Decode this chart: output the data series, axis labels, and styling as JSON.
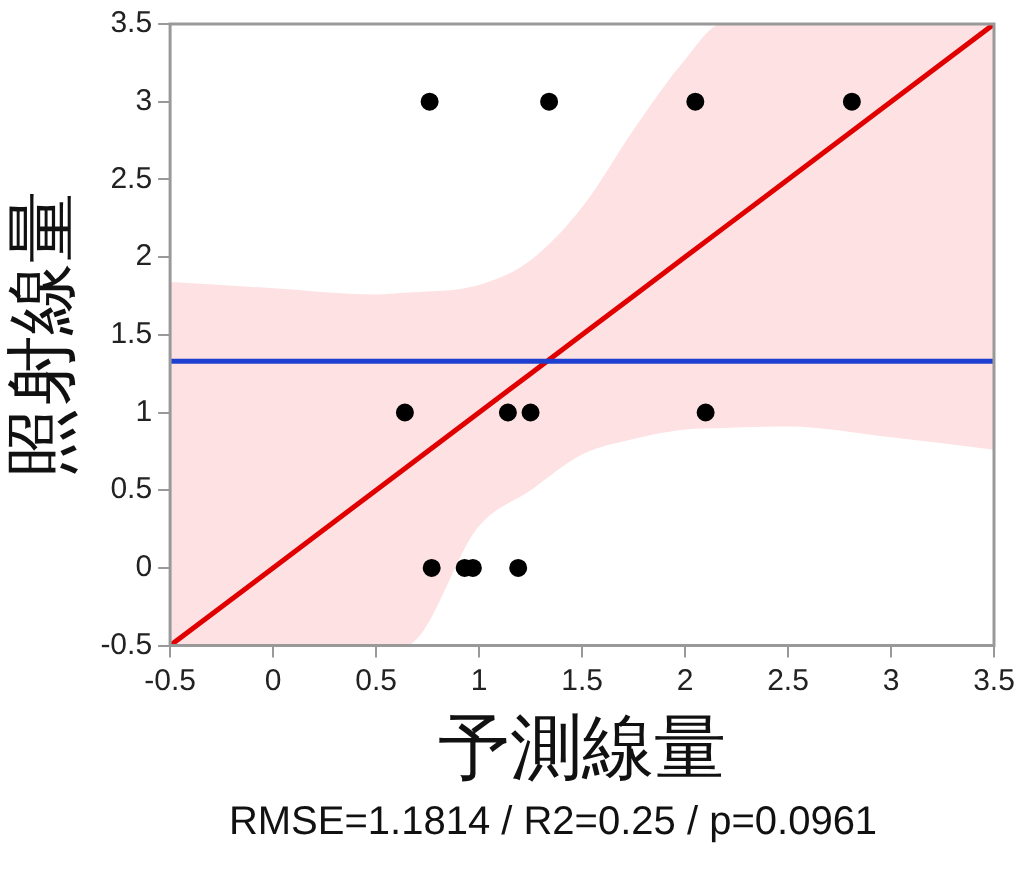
{
  "chart_data": {
    "type": "scatter",
    "xlabel": "予測線量",
    "ylabel": "照射線量",
    "annotations": [
      "RMSE=1.1814 / R2=0.25 / p=0.0961"
    ],
    "xlim": [
      -0.5,
      3.5
    ],
    "ylim": [
      -0.5,
      3.5
    ],
    "xticks": [
      -0.5,
      0,
      0.5,
      1,
      1.5,
      2,
      2.5,
      3,
      3.5
    ],
    "yticks": [
      -0.5,
      0,
      0.5,
      1,
      1.5,
      2,
      2.5,
      3,
      3.5
    ],
    "grid": false,
    "legend": false,
    "series": [
      {
        "marker": "circle",
        "color": "#000000",
        "x": [
          0.76,
          1.34,
          2.05,
          2.81,
          0.64,
          1.14,
          1.25,
          2.1,
          0.77,
          0.93,
          0.97,
          1.19
        ],
        "values": [
          3,
          3,
          3,
          3,
          1,
          1,
          1,
          1,
          0,
          0,
          0,
          0
        ]
      },
      {
        "type": "line",
        "marker": "none",
        "color": "#e00000",
        "line_style": "solid",
        "x": [
          -0.5,
          0,
          0.5,
          0.64,
          1,
          1.25,
          1.5,
          1.75,
          2,
          2.18,
          2.5,
          3,
          3.5
        ],
        "values": [
          -0.5,
          0,
          0.5,
          0.64,
          1,
          1.25,
          1.5,
          1.75,
          2,
          2.18,
          2.5,
          3,
          3.5
        ],
        "lower": [
          -0.5,
          -0.5,
          -0.5,
          -0.5,
          0.27,
          0.5,
          0.73,
          0.83,
          0.89,
          0.9,
          0.91,
          0.84,
          0.76
        ],
        "upper": [
          1.84,
          1.8,
          1.76,
          1.77,
          1.82,
          1.98,
          2.32,
          2.82,
          3.27,
          3.5,
          3.5,
          3.5,
          3.5
        ]
      }
    ],
    "ref_lines": [
      {
        "axis": "y",
        "value": 1.33,
        "color": "#1f3fd0"
      }
    ]
  }
}
